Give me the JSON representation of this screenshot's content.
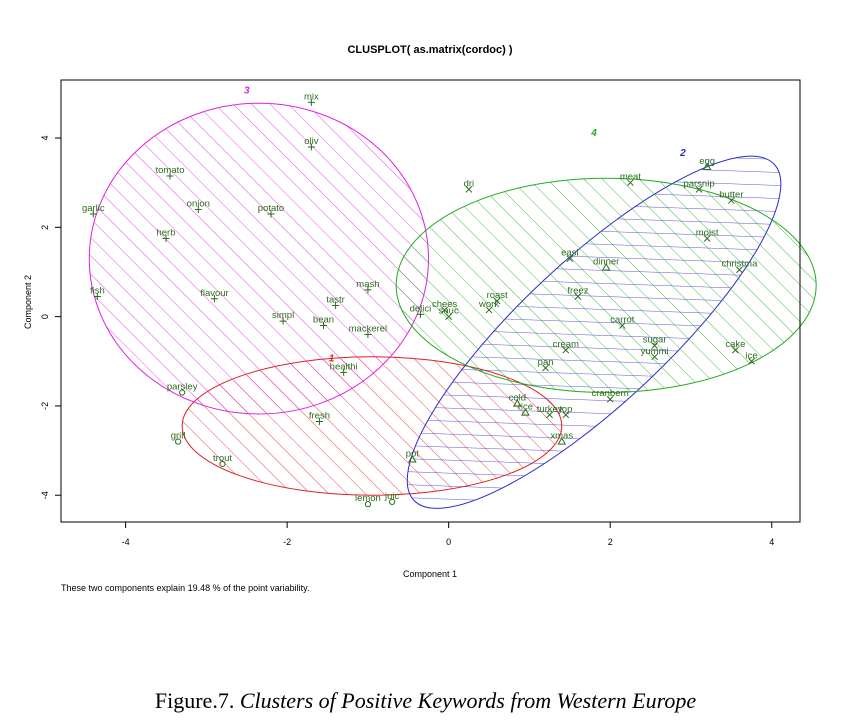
{
  "chart_data": {
    "type": "scatter",
    "title": "CLUSPLOT( as.matrix(cordoc) )",
    "xlabel": "Component 1",
    "ylabel": "Component 2",
    "xlim": [
      -4.8,
      4.35
    ],
    "ylim": [
      -4.6,
      5.3
    ],
    "xticks": [
      -4,
      -2,
      0,
      2,
      4
    ],
    "yticks": [
      -4,
      -2,
      0,
      2,
      4
    ],
    "grid": false,
    "note": "These two components explain 19.48 % of the point variability.",
    "clusters": [
      {
        "id": "1",
        "color": "#e02020",
        "center": [
          -0.95,
          -2.45
        ],
        "rx": 2.35,
        "ry": 1.55,
        "angle": 0
      },
      {
        "id": "2",
        "color": "#2a2ad0",
        "center": [
          1.8,
          -0.35
        ],
        "rx": 3.05,
        "ry": 1.62,
        "angle": 43
      },
      {
        "id": "3",
        "color": "#e020e0",
        "center": [
          -2.35,
          1.3
        ],
        "rx": 2.1,
        "ry": 3.48,
        "angle": 0
      },
      {
        "id": "4",
        "color": "#22aa22",
        "center": [
          1.95,
          0.7
        ],
        "rx": 2.6,
        "ry": 2.4,
        "angle": 0
      }
    ],
    "cluster_labels": [
      {
        "text": "1",
        "x": -1.45,
        "y": -1.0
      },
      {
        "text": "2",
        "x": 2.9,
        "y": 3.6
      },
      {
        "text": "3",
        "x": -2.5,
        "y": 5.0
      },
      {
        "text": "4",
        "x": 1.8,
        "y": 4.05
      }
    ],
    "points": [
      {
        "label": "mix",
        "x": -1.7,
        "y": 4.8,
        "mark": "plus"
      },
      {
        "label": "oliv",
        "x": -1.7,
        "y": 3.8,
        "mark": "plus"
      },
      {
        "label": "tomato",
        "x": -3.45,
        "y": 3.15,
        "mark": "plus"
      },
      {
        "label": "onion",
        "x": -3.1,
        "y": 2.4,
        "mark": "plus"
      },
      {
        "label": "potato",
        "x": -2.2,
        "y": 2.3,
        "mark": "plus"
      },
      {
        "label": "garlic",
        "x": -4.4,
        "y": 2.3,
        "mark": "plus"
      },
      {
        "label": "herb",
        "x": -3.5,
        "y": 1.75,
        "mark": "plus"
      },
      {
        "label": "fish",
        "x": -4.35,
        "y": 0.45,
        "mark": "plus"
      },
      {
        "label": "flavour",
        "x": -2.9,
        "y": 0.4,
        "mark": "plus"
      },
      {
        "label": "mash",
        "x": -1.0,
        "y": 0.6,
        "mark": "plus"
      },
      {
        "label": "tastr",
        "x": -1.4,
        "y": 0.25,
        "mark": "plus"
      },
      {
        "label": "simpl",
        "x": -2.05,
        "y": -0.1,
        "mark": "plus"
      },
      {
        "label": "bean",
        "x": -1.55,
        "y": -0.2,
        "mark": "plus"
      },
      {
        "label": "mackerel",
        "x": -1.0,
        "y": -0.4,
        "mark": "plus"
      },
      {
        "label": "delici",
        "x": -0.35,
        "y": 0.05,
        "mark": "plus"
      },
      {
        "label": "healthi",
        "x": -1.3,
        "y": -1.25,
        "mark": "plus"
      },
      {
        "label": "parsley",
        "x": -3.3,
        "y": -1.7,
        "mark": "circle"
      },
      {
        "label": "fresh",
        "x": -1.6,
        "y": -2.35,
        "mark": "plus"
      },
      {
        "label": "grill",
        "x": -3.35,
        "y": -2.8,
        "mark": "circle"
      },
      {
        "label": "trout",
        "x": -2.8,
        "y": -3.3,
        "mark": "circle"
      },
      {
        "label": "lemon",
        "x": -1.0,
        "y": -4.2,
        "mark": "circle"
      },
      {
        "label": "juic",
        "x": -0.7,
        "y": -4.15,
        "mark": "circle"
      },
      {
        "label": "dri",
        "x": 0.25,
        "y": 2.85,
        "mark": "x"
      },
      {
        "label": "meat",
        "x": 2.25,
        "y": 3.0,
        "mark": "x"
      },
      {
        "label": "egg",
        "x": 3.2,
        "y": 3.35,
        "mark": "triangle"
      },
      {
        "label": "parsnip",
        "x": 3.1,
        "y": 2.85,
        "mark": "x"
      },
      {
        "label": "butter",
        "x": 3.5,
        "y": 2.6,
        "mark": "x"
      },
      {
        "label": "moist",
        "x": 3.2,
        "y": 1.75,
        "mark": "x"
      },
      {
        "label": "christma",
        "x": 3.6,
        "y": 1.05,
        "mark": "x"
      },
      {
        "label": "easi",
        "x": 1.5,
        "y": 1.3,
        "mark": "x"
      },
      {
        "label": "dinner",
        "x": 1.95,
        "y": 1.1,
        "mark": "triangle"
      },
      {
        "label": "freez",
        "x": 1.6,
        "y": 0.45,
        "mark": "x"
      },
      {
        "label": "chees",
        "x": -0.05,
        "y": 0.15,
        "mark": "x"
      },
      {
        "label": "sauc",
        "x": 0.0,
        "y": 0.0,
        "mark": "x"
      },
      {
        "label": "roast",
        "x": 0.6,
        "y": 0.35,
        "mark": "x"
      },
      {
        "label": "work",
        "x": 0.5,
        "y": 0.15,
        "mark": "x"
      },
      {
        "label": "carrot",
        "x": 2.15,
        "y": -0.2,
        "mark": "x"
      },
      {
        "label": "cream",
        "x": 1.45,
        "y": -0.75,
        "mark": "x"
      },
      {
        "label": "sugar",
        "x": 2.55,
        "y": -0.65,
        "mark": "x"
      },
      {
        "label": "yummi",
        "x": 2.55,
        "y": -0.9,
        "mark": "x"
      },
      {
        "label": "cake",
        "x": 3.55,
        "y": -0.75,
        "mark": "x"
      },
      {
        "label": "ice",
        "x": 3.75,
        "y": -1.0,
        "mark": "x"
      },
      {
        "label": "pan",
        "x": 1.2,
        "y": -1.15,
        "mark": "x"
      },
      {
        "label": "cranberri",
        "x": 2.0,
        "y": -1.85,
        "mark": "x"
      },
      {
        "label": "cold",
        "x": 0.85,
        "y": -1.95,
        "mark": "triangle"
      },
      {
        "label": "rice",
        "x": 0.95,
        "y": -2.15,
        "mark": "triangle"
      },
      {
        "label": "turkey",
        "x": 1.25,
        "y": -2.2,
        "mark": "x"
      },
      {
        "label": "top",
        "x": 1.45,
        "y": -2.2,
        "mark": "x"
      },
      {
        "label": "xmas",
        "x": 1.4,
        "y": -2.8,
        "mark": "triangle"
      },
      {
        "label": "pot",
        "x": -0.45,
        "y": -3.2,
        "mark": "triangle"
      }
    ]
  },
  "caption": {
    "prefix": "Figure.7.",
    "italic": "Clusters of Positive Keywords from Western Europe"
  }
}
